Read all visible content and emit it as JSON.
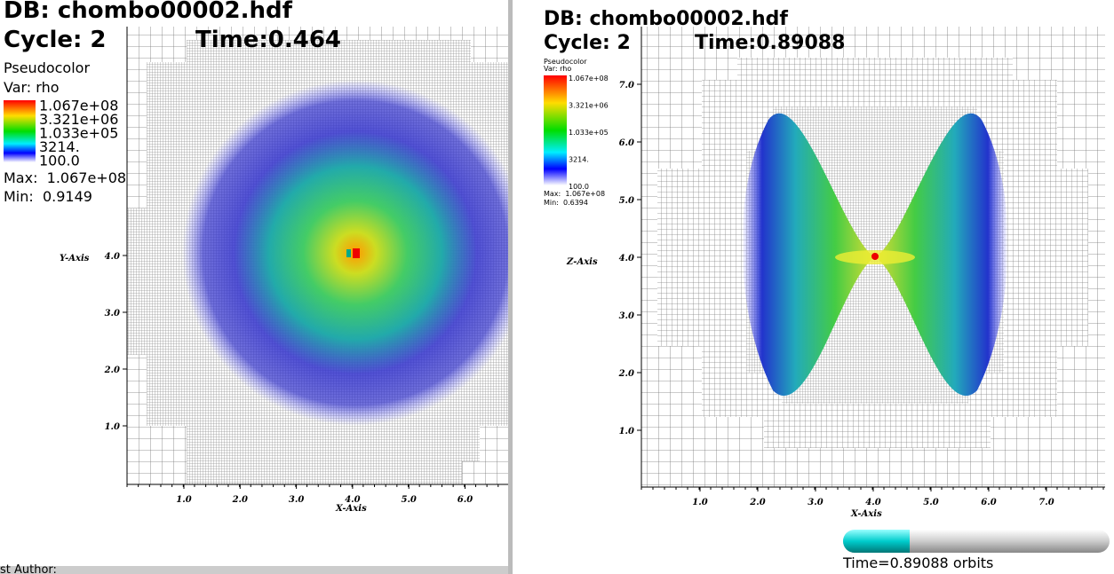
{
  "left": {
    "db": "DB: chombo00002.hdf",
    "cycle": "Cycle: 2",
    "time": "Time:0.464",
    "plot": "Pseudocolor",
    "var": "Var: rho",
    "legend": [
      "1.067e+08",
      "3.321e+06",
      "1.033e+05",
      "3214.",
      "100.0"
    ],
    "max": "Max:  1.067e+08",
    "min": "Min:  0.9149",
    "y_axis": "Y-Axis",
    "x_axis": "X-Axis",
    "yticks": [
      "1.0",
      "2.0",
      "3.0",
      "4.0"
    ],
    "xticks": [
      "1.0",
      "2.0",
      "3.0",
      "4.0",
      "5.0",
      "6.0"
    ]
  },
  "right": {
    "db": "DB: chombo00002.hdf",
    "cycle": "Cycle: 2",
    "time": "Time:0.89088",
    "plot": "Pseudocolor",
    "var": "Var: rho",
    "legend": [
      "1.067e+08",
      "3.321e+06",
      "1.033e+05",
      "3214.",
      "100.0"
    ],
    "max": "Max:  1.067e+08",
    "min": "Min:  0.6394",
    "y_axis": "Z-Axis",
    "x_axis": "X-Axis",
    "yticks": [
      "1.0",
      "2.0",
      "3.0",
      "4.0",
      "5.0",
      "6.0",
      "7.0"
    ],
    "xticks": [
      "1.0",
      "2.0",
      "3.0",
      "4.0",
      "5.0",
      "6.0",
      "7.0"
    ],
    "slider": "Time=0.89088 orbits"
  },
  "footer": "st Author:"
}
